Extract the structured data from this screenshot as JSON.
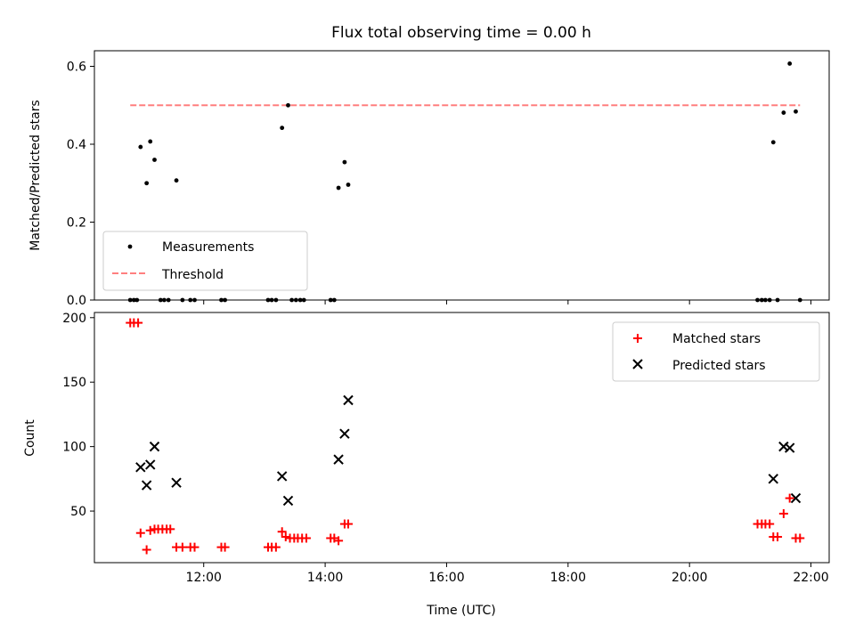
{
  "chart_data": {
    "type": "scatter",
    "title": "Flux total observing time = 0.00 h",
    "xlabel": "Time (UTC)",
    "x_unit": "hours UTC",
    "xlim": [
      10.2,
      22.3
    ],
    "xticks": [
      {
        "value": 12,
        "label": "12:00"
      },
      {
        "value": 14,
        "label": "14:00"
      },
      {
        "value": 16,
        "label": "16:00"
      },
      {
        "value": 18,
        "label": "18:00"
      },
      {
        "value": 20,
        "label": "20:00"
      },
      {
        "value": 22,
        "label": "22:00"
      }
    ],
    "top_panel": {
      "ylabel": "Matched/Predicted stars",
      "ylim": [
        0,
        0.64
      ],
      "yticks": [
        {
          "value": 0.0,
          "label": "0.0"
        },
        {
          "value": 0.2,
          "label": "0.2"
        },
        {
          "value": 0.4,
          "label": "0.4"
        },
        {
          "value": 0.6,
          "label": "0.6"
        }
      ],
      "legend_position": "lower-left",
      "series": [
        {
          "name": "Measurements",
          "marker": "dot",
          "color": "#000000",
          "points": [
            [
              10.79,
              0.0
            ],
            [
              10.85,
              0.0
            ],
            [
              10.9,
              0.0
            ],
            [
              10.96,
              0.393
            ],
            [
              11.06,
              0.3
            ],
            [
              11.12,
              0.407
            ],
            [
              11.19,
              0.36
            ],
            [
              11.29,
              0.0
            ],
            [
              11.35,
              0.0
            ],
            [
              11.42,
              0.0
            ],
            [
              11.55,
              0.307
            ],
            [
              11.65,
              0.0
            ],
            [
              11.78,
              0.0
            ],
            [
              11.85,
              0.0
            ],
            [
              12.29,
              0.0
            ],
            [
              12.35,
              0.0
            ],
            [
              13.06,
              0.0
            ],
            [
              13.12,
              0.0
            ],
            [
              13.19,
              0.0
            ],
            [
              13.29,
              0.442
            ],
            [
              13.39,
              0.5
            ],
            [
              13.45,
              0.0
            ],
            [
              13.52,
              0.0
            ],
            [
              13.59,
              0.0
            ],
            [
              13.65,
              0.0
            ],
            [
              14.09,
              0.0
            ],
            [
              14.15,
              0.0
            ],
            [
              14.22,
              0.288
            ],
            [
              14.32,
              0.354
            ],
            [
              14.38,
              0.296
            ],
            [
              21.12,
              0.0
            ],
            [
              21.19,
              0.0
            ],
            [
              21.25,
              0.0
            ],
            [
              21.32,
              0.0
            ],
            [
              21.38,
              0.405
            ],
            [
              21.45,
              0.0
            ],
            [
              21.55,
              0.481
            ],
            [
              21.65,
              0.607
            ],
            [
              21.75,
              0.484
            ],
            [
              21.82,
              0.0
            ]
          ]
        },
        {
          "name": "Threshold",
          "line_style": "dashed",
          "color": "#ff7f7f",
          "value": 0.5,
          "x_range": [
            10.79,
            21.82
          ]
        }
      ]
    },
    "bottom_panel": {
      "ylabel": "Count",
      "ylim": [
        10,
        204
      ],
      "yticks": [
        {
          "value": 50,
          "label": "50"
        },
        {
          "value": 100,
          "label": "100"
        },
        {
          "value": 150,
          "label": "150"
        },
        {
          "value": 200,
          "label": "200"
        }
      ],
      "legend_position": "upper-right",
      "series": [
        {
          "name": "Matched stars",
          "marker": "plus",
          "color": "#ff0000",
          "points": [
            [
              10.79,
              196
            ],
            [
              10.85,
              196
            ],
            [
              10.92,
              196
            ],
            [
              10.96,
              33
            ],
            [
              11.06,
              20
            ],
            [
              11.12,
              35
            ],
            [
              11.19,
              36
            ],
            [
              11.25,
              36
            ],
            [
              11.32,
              36
            ],
            [
              11.39,
              36
            ],
            [
              11.45,
              36
            ],
            [
              11.55,
              22
            ],
            [
              11.65,
              22
            ],
            [
              11.78,
              22
            ],
            [
              11.85,
              22
            ],
            [
              12.29,
              22
            ],
            [
              12.35,
              22
            ],
            [
              13.06,
              22
            ],
            [
              13.12,
              22
            ],
            [
              13.19,
              22
            ],
            [
              13.29,
              34
            ],
            [
              13.35,
              30
            ],
            [
              13.42,
              29
            ],
            [
              13.49,
              29
            ],
            [
              13.55,
              29
            ],
            [
              13.62,
              29
            ],
            [
              13.69,
              29
            ],
            [
              14.09,
              29
            ],
            [
              14.15,
              29
            ],
            [
              14.22,
              27
            ],
            [
              14.32,
              40
            ],
            [
              14.38,
              40
            ],
            [
              21.12,
              40
            ],
            [
              21.19,
              40
            ],
            [
              21.25,
              40
            ],
            [
              21.32,
              40
            ],
            [
              21.38,
              30
            ],
            [
              21.45,
              30
            ],
            [
              21.55,
              48
            ],
            [
              21.65,
              60
            ],
            [
              21.75,
              29
            ],
            [
              21.82,
              29
            ]
          ]
        },
        {
          "name": "Predicted stars",
          "marker": "x",
          "color": "#000000",
          "points": [
            [
              10.96,
              84
            ],
            [
              11.06,
              70
            ],
            [
              11.12,
              86
            ],
            [
              11.19,
              100
            ],
            [
              11.55,
              72
            ],
            [
              13.29,
              77
            ],
            [
              13.39,
              58
            ],
            [
              14.22,
              90
            ],
            [
              14.32,
              110
            ],
            [
              14.38,
              136
            ],
            [
              21.38,
              75
            ],
            [
              21.55,
              100
            ],
            [
              21.65,
              99
            ],
            [
              21.75,
              60
            ]
          ]
        }
      ]
    }
  }
}
